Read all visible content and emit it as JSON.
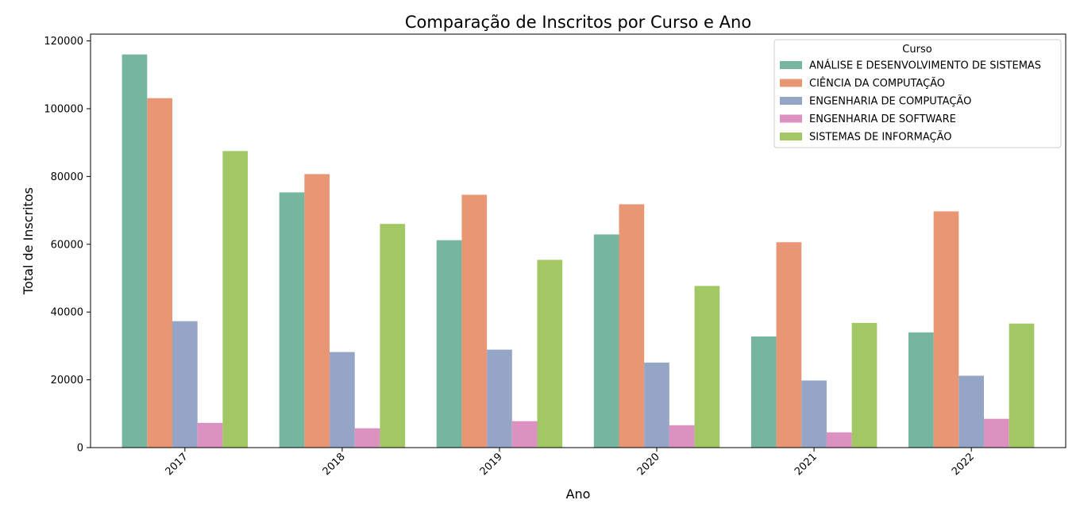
{
  "chart_data": {
    "type": "bar",
    "title": "Comparação de Inscritos por Curso e Ano",
    "xlabel": "Ano",
    "ylabel": "Total de Inscritos",
    "categories": [
      "2017",
      "2018",
      "2019",
      "2020",
      "2021",
      "2022"
    ],
    "ylim": [
      0,
      122000
    ],
    "yticks": [
      0,
      20000,
      40000,
      60000,
      80000,
      100000,
      120000
    ],
    "grid": false,
    "legend": {
      "title": "Curso",
      "placement": "top-right"
    },
    "series": [
      {
        "name": "ANÁLISE E DESENVOLVIMENTO DE SISTEMAS",
        "color": "#76b5a0",
        "values": [
          116000,
          75300,
          61200,
          62900,
          32800,
          34000
        ]
      },
      {
        "name": "CIÊNCIA DA COMPUTAÇÃO",
        "color": "#e99675",
        "values": [
          103100,
          80700,
          74600,
          71800,
          60600,
          69700
        ]
      },
      {
        "name": "ENGENHARIA DE COMPUTAÇÃO",
        "color": "#95a5c6",
        "values": [
          37300,
          28200,
          28900,
          25100,
          19800,
          21200
        ]
      },
      {
        "name": "ENGENHARIA DE SOFTWARE",
        "color": "#dc92c1",
        "values": [
          7300,
          5700,
          7800,
          6600,
          4500,
          8500
        ]
      },
      {
        "name": "SISTEMAS DE INFORMAÇÃO",
        "color": "#a2c865",
        "values": [
          87500,
          66000,
          55400,
          47700,
          36800,
          36600
        ]
      }
    ]
  }
}
